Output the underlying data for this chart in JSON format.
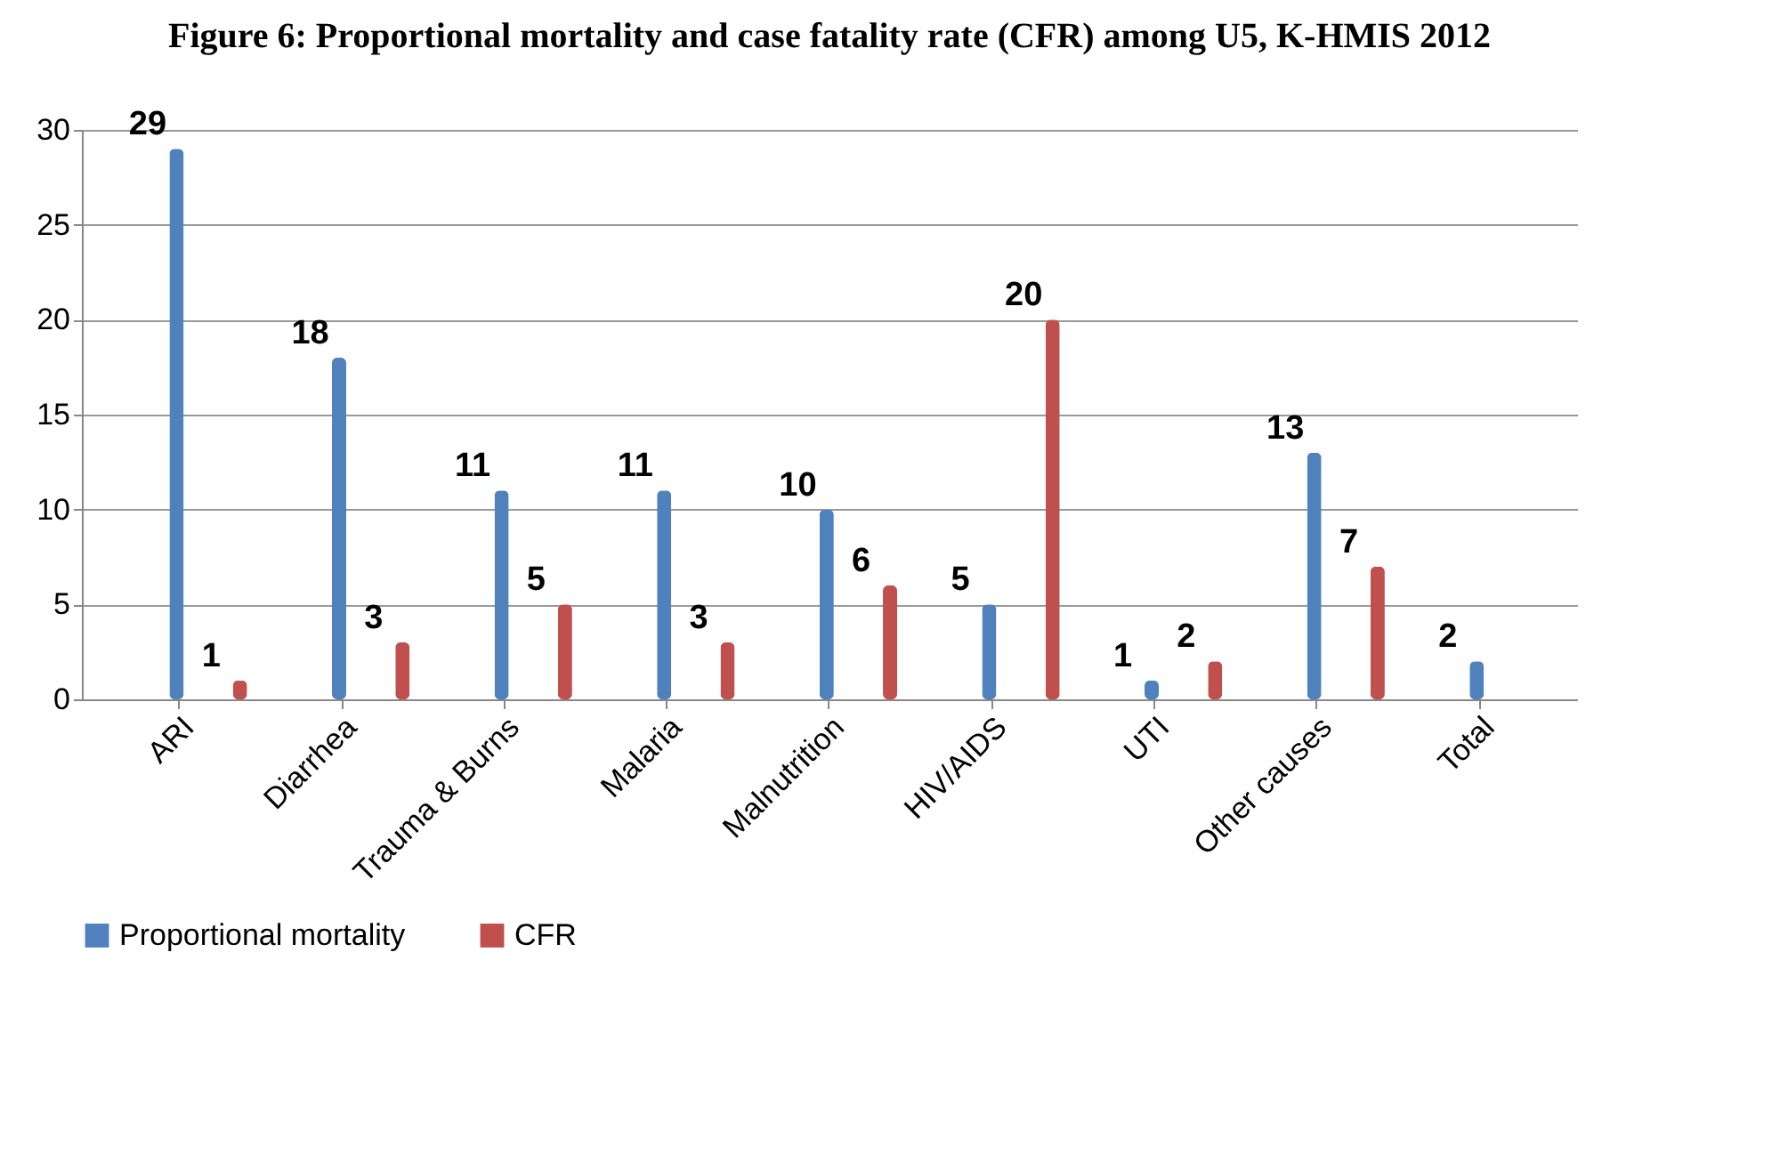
{
  "chart_data": {
    "type": "bar",
    "title": "Figure 6: Proportional mortality and case fatality rate (CFR) among U5, K-HMIS 2012",
    "categories": [
      "ARI",
      "Diarrhea",
      "Trauma & Burns",
      "Malaria",
      "Malnutrition",
      "HIV/AIDS",
      "UTI",
      "Other causes",
      "Total"
    ],
    "series": [
      {
        "name": "Proportional mortality",
        "color": "#4f81bd",
        "values": [
          29,
          18,
          11,
          11,
          10,
          5,
          1,
          13,
          2
        ]
      },
      {
        "name": "CFR",
        "color": "#c0504d",
        "values": [
          1,
          3,
          5,
          3,
          6,
          20,
          2,
          7,
          null
        ]
      }
    ],
    "ylim": [
      0,
      30
    ],
    "yticks": [
      0,
      5,
      10,
      15,
      20,
      25,
      30
    ],
    "grid": "y",
    "legend": "bottom",
    "data_labels": true
  }
}
